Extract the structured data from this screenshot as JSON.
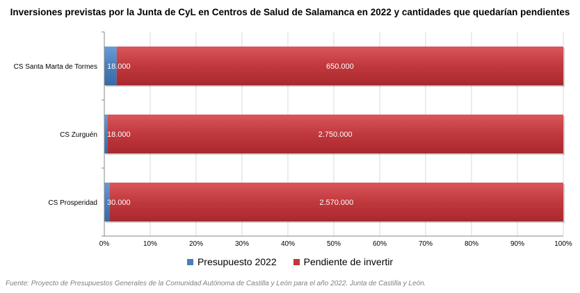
{
  "title": "Inversiones previstas por la Junta de CyL en Centros de Salud de Salamanca en 2022 y cantidades que quedarían pendientes",
  "source": "Fuente: Proyecto de Presupuestos Generales de la Comunidad Autónoma de Castilla y León para el año 2022. Junta de Castilla y León.",
  "colors": {
    "presupuesto": "#4a7ebb",
    "pendiente": "#c0383d",
    "grid": "#d9d9d9"
  },
  "chart_data": {
    "type": "bar",
    "orientation": "horizontal",
    "stacked": "percent",
    "categories": [
      "CS Santa Marta de Tormes",
      "CS Zurguén",
      "CS Prosperidad"
    ],
    "series": [
      {
        "name": "Presupuesto 2022",
        "values": [
          18000,
          18000,
          30000
        ],
        "labels": [
          "18.000",
          "18.000",
          "30.000"
        ]
      },
      {
        "name": "Pendiente de invertir",
        "values": [
          650000,
          2750000,
          2570000
        ],
        "labels": [
          "650.000",
          "2.750.000",
          "2.570.000"
        ]
      }
    ],
    "xticks": [
      "0%",
      "10%",
      "20%",
      "30%",
      "40%",
      "50%",
      "60%",
      "70%",
      "80%",
      "90%",
      "100%"
    ],
    "xlim": [
      0,
      100
    ],
    "grid": true,
    "legend": "bottom"
  }
}
